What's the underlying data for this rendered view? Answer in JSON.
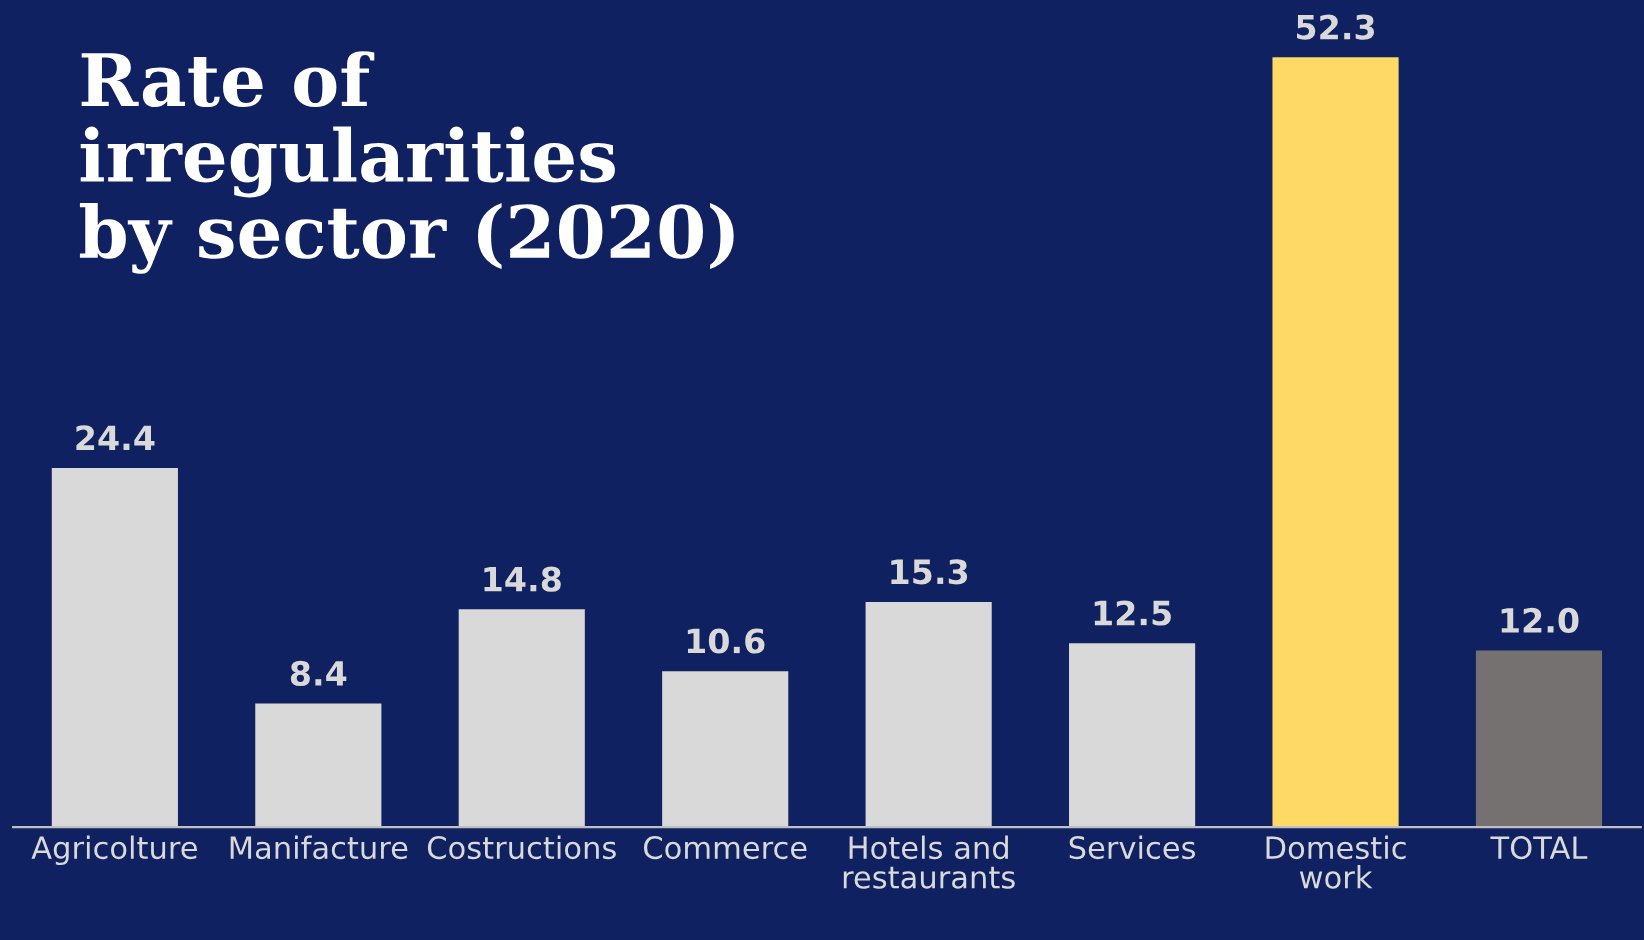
{
  "chart_data": {
    "type": "bar",
    "title": "Rate of\nirregularities\nby sector (2020)",
    "categories": [
      "Agricolture",
      "Manifacture",
      "Costructions",
      "Commerce",
      "Hotels and\nrestaurants",
      "Services",
      "Domestic\nwork",
      "TOTAL"
    ],
    "values": [
      24.4,
      8.4,
      14.8,
      10.6,
      15.3,
      12.5,
      52.3,
      12.0
    ],
    "value_labels": [
      "24.4",
      "8.4",
      "14.8",
      "10.6",
      "15.3",
      "12.5",
      "52.3",
      "12.0"
    ],
    "colors": [
      "#d9d9d9",
      "#d9d9d9",
      "#d9d9d9",
      "#d9d9d9",
      "#d9d9d9",
      "#d9d9d9",
      "#ffd966",
      "#767171"
    ],
    "tick_labels": "x",
    "grid": false,
    "legend": false
  }
}
